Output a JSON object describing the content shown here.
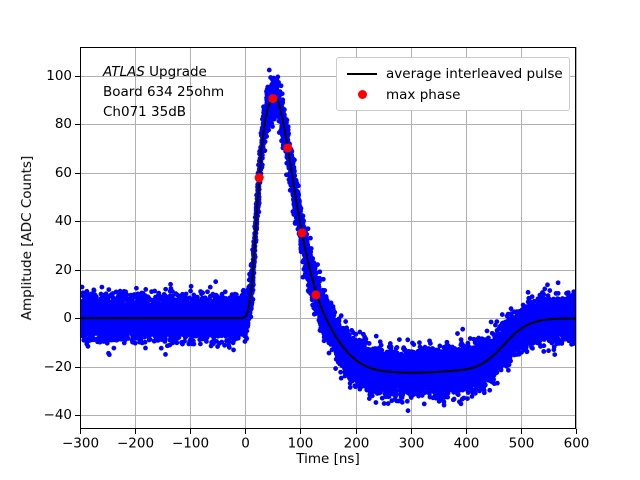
{
  "figure": {
    "background": "#ffffff"
  },
  "chart_data": {
    "type": "scatter",
    "title": "",
    "xlabel": "Time [ns]",
    "ylabel": "Amplitude [ADC Counts]",
    "xlim": [
      -300,
      600
    ],
    "ylim": [
      -45.8,
      112
    ],
    "xticks": [
      -300,
      -200,
      -100,
      0,
      100,
      200,
      300,
      400,
      500,
      600
    ],
    "yticks": [
      -40,
      -20,
      0,
      20,
      40,
      60,
      80,
      100
    ],
    "grid": true,
    "grid_color": "#b0b0b0",
    "axis_color": "#000000",
    "tick_label_color": "#000000",
    "annotation": {
      "line1_italic": "ATLAS",
      "line1_rest": " Upgrade",
      "line2": "Board 634 25ohm",
      "line3": "Ch071 35dB"
    },
    "legend": {
      "position": "upper right",
      "entries": [
        {
          "type": "line",
          "color": "#000000",
          "label": "average interleaved pulse"
        },
        {
          "type": "marker",
          "color": "#ff0000",
          "label": "max phase"
        }
      ]
    },
    "series": [
      {
        "name": "interleaved pulses scatter",
        "type": "noisy_scatter",
        "color": "#0000ff",
        "marker_radius": 2.4,
        "noise_sigma": 4.3,
        "n_points": 15000,
        "seed": 42,
        "mean_from": "average interleaved pulse"
      },
      {
        "name": "average interleaved pulse",
        "type": "line",
        "color": "#000000",
        "width": 2,
        "points": [
          [
            -300,
            0
          ],
          [
            -20,
            0
          ],
          [
            -10,
            0
          ],
          [
            -5,
            0
          ],
          [
            0,
            0.6
          ],
          [
            5,
            3
          ],
          [
            8,
            7
          ],
          [
            12,
            14
          ],
          [
            16,
            27
          ],
          [
            20,
            41
          ],
          [
            24,
            54
          ],
          [
            28,
            66
          ],
          [
            32,
            75
          ],
          [
            36,
            81.5
          ],
          [
            40,
            86
          ],
          [
            44,
            89
          ],
          [
            48,
            90.5
          ],
          [
            52,
            91.2
          ],
          [
            56,
            91
          ],
          [
            60,
            89.3
          ],
          [
            64,
            86.3
          ],
          [
            68,
            82
          ],
          [
            72,
            77
          ],
          [
            76,
            71.5
          ],
          [
            80,
            66
          ],
          [
            85,
            59
          ],
          [
            90,
            51.8
          ],
          [
            95,
            45
          ],
          [
            100,
            38.6
          ],
          [
            105,
            32.7
          ],
          [
            110,
            27.2
          ],
          [
            115,
            22.2
          ],
          [
            120,
            17.6
          ],
          [
            125,
            13.4
          ],
          [
            130,
            9.6
          ],
          [
            135,
            6.2
          ],
          [
            140,
            3.2
          ],
          [
            145,
            0.6
          ],
          [
            150,
            -1.8
          ],
          [
            155,
            -4
          ],
          [
            160,
            -6
          ],
          [
            165,
            -7.9
          ],
          [
            170,
            -9.6
          ],
          [
            175,
            -11.2
          ],
          [
            180,
            -12.7
          ],
          [
            190,
            -15.2
          ],
          [
            200,
            -17.2
          ],
          [
            210,
            -18.8
          ],
          [
            220,
            -20
          ],
          [
            230,
            -20.9
          ],
          [
            240,
            -21.5
          ],
          [
            255,
            -22
          ],
          [
            270,
            -22.3
          ],
          [
            290,
            -22.5
          ],
          [
            310,
            -22.5
          ],
          [
            330,
            -22.4
          ],
          [
            350,
            -22.2
          ],
          [
            370,
            -21.9
          ],
          [
            390,
            -21.5
          ],
          [
            400,
            -21.2
          ],
          [
            410,
            -20.7
          ],
          [
            420,
            -19.9
          ],
          [
            430,
            -18.8
          ],
          [
            440,
            -17.3
          ],
          [
            450,
            -15.4
          ],
          [
            460,
            -13.2
          ],
          [
            470,
            -10.8
          ],
          [
            480,
            -8.4
          ],
          [
            490,
            -6.2
          ],
          [
            500,
            -4.4
          ],
          [
            510,
            -3
          ],
          [
            520,
            -2
          ],
          [
            530,
            -1.3
          ],
          [
            540,
            -0.8
          ],
          [
            555,
            -0.4
          ],
          [
            570,
            -0.2
          ],
          [
            600,
            -0.1
          ]
        ]
      },
      {
        "name": "max phase",
        "type": "scatter",
        "color": "#ff0000",
        "marker_radius": 4.5,
        "points": [
          [
            25,
            58
          ],
          [
            50,
            90.7
          ],
          [
            77,
            70.3
          ],
          [
            103,
            35.2
          ],
          [
            128,
            9.6
          ]
        ]
      }
    ]
  }
}
